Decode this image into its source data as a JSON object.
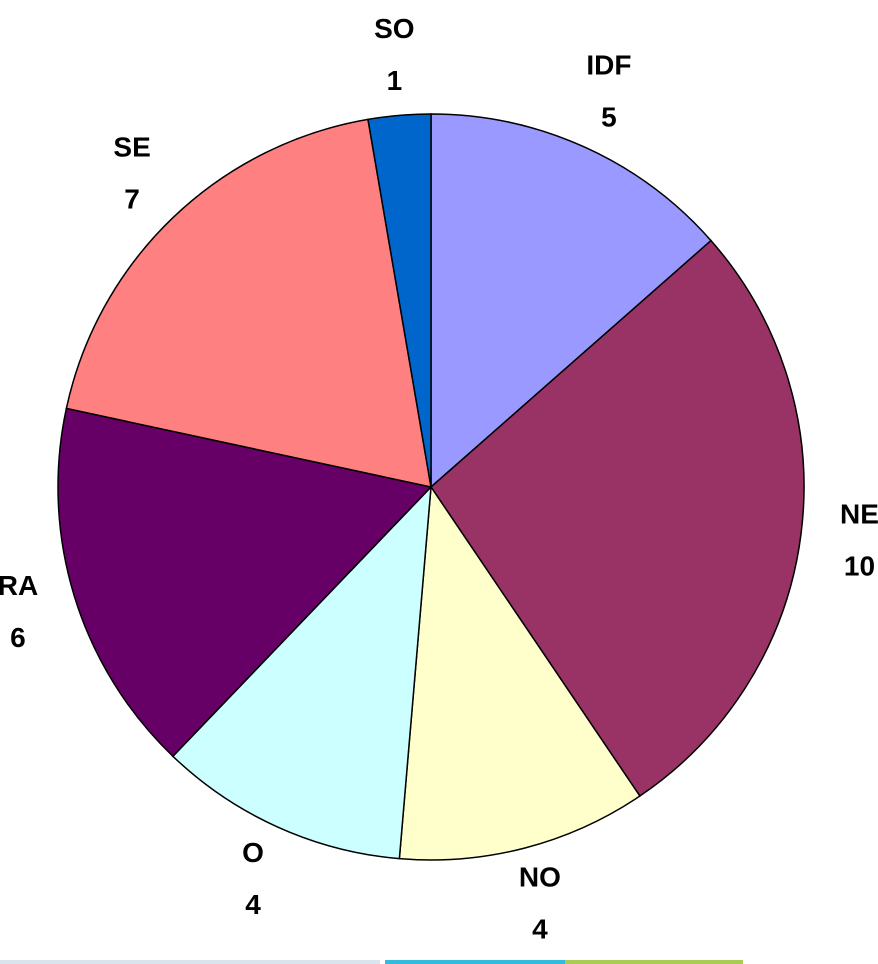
{
  "chart_data": {
    "type": "pie",
    "categories": [
      "IDF",
      "NE",
      "NO",
      "O",
      "RA",
      "SE",
      "SO"
    ],
    "values": [
      5,
      10,
      4,
      4,
      6,
      7,
      1
    ],
    "colors": [
      "#9999ff",
      "#993366",
      "#ffffcc",
      "#ccffff",
      "#660066",
      "#ff8080",
      "#0066cc"
    ]
  }
}
